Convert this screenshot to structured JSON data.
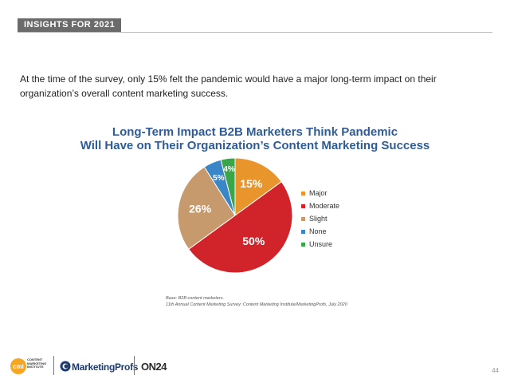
{
  "header": {
    "section_label": "INSIGHTS FOR 2021"
  },
  "intro_text": "At the time of the survey, only 15% felt the pandemic would have a major long-term impact on their organization’s overall content marketing success.",
  "chart_data": {
    "type": "pie",
    "title_line1": "Long-Term Impact B2B Marketers Think Pandemic",
    "title_line2": "Will Have on Their Organization’s Content Marketing Success",
    "slices": [
      {
        "label": "Major",
        "value": 15,
        "display": "15%",
        "color": "#e8952b"
      },
      {
        "label": "Moderate",
        "value": 50,
        "display": "50%",
        "color": "#d1232a"
      },
      {
        "label": "Slight",
        "value": 26,
        "display": "26%",
        "color": "#c79a6d"
      },
      {
        "label": "None",
        "value": 5,
        "display": "5%",
        "color": "#3b86c6"
      },
      {
        "label": "Unsure",
        "value": 4,
        "display": "4%",
        "color": "#3aa64a"
      }
    ],
    "legend_position": "right"
  },
  "notes": {
    "base": "Base: B2B content marketers.",
    "source": "11th Annual Content Marketing Survey: Content Marketing Institute/MarketingProfs, July 2020"
  },
  "footer": {
    "cmi_brand": "CONTENT MARKETING INSTITUTE",
    "cmi_mark": "cmi",
    "mp_brand": "MarketingProfs",
    "on24_brand": "ON24",
    "page_number": "44"
  }
}
